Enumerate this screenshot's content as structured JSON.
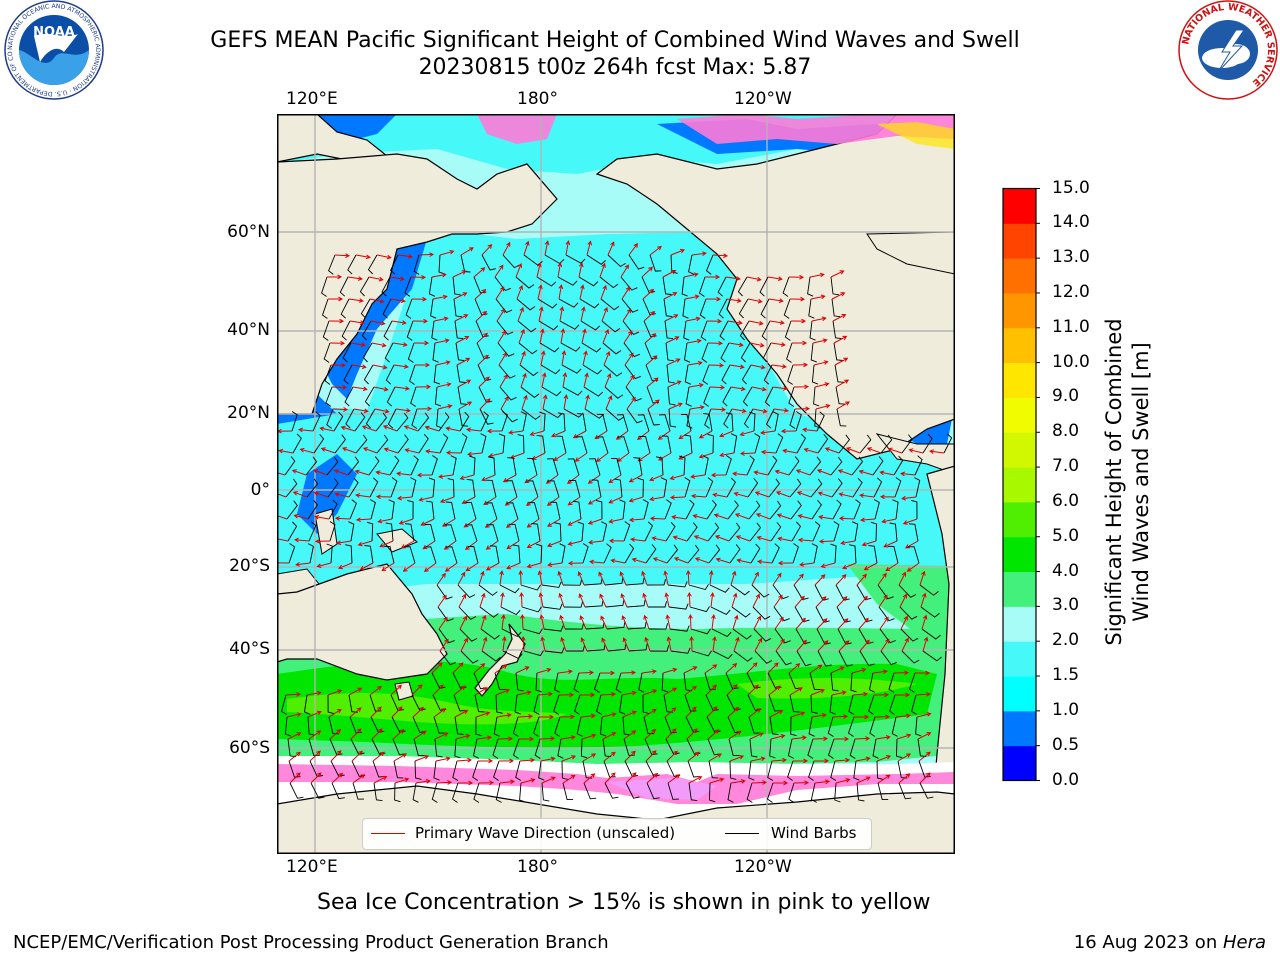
{
  "header": {
    "title_line1": "GEFS MEAN Pacific Significant Height of Combined Wind Waves and Swell",
    "title_line2": "20230815 t00z 264h fcst   Max: 5.87"
  },
  "logos": {
    "noaa": {
      "text": "NOAA",
      "ring_text": "NATIONAL OCEANIC AND ATMOSPHERIC ADMINISTRATION · U.S. DEPARTMENT OF COMMERCE"
    },
    "nws": {
      "ring_text": "NATIONAL WEATHER SERVICE"
    }
  },
  "map": {
    "lon_labels_top": [
      "120°E",
      "180°",
      "120°W"
    ],
    "lon_labels_bottom": [
      "120°E",
      "180°",
      "120°W"
    ],
    "lat_labels": [
      "60°N",
      "40°N",
      "20°N",
      "0°",
      "20°S",
      "40°S",
      "60°S"
    ],
    "colors": {
      "land": "#efecdc",
      "ice": "#ffffff",
      "ocean_calm": "#a8fcf8",
      "ocean_mid": "#46f8f8"
    }
  },
  "colorbar": {
    "ticks": [
      "15.0",
      "14.0",
      "13.0",
      "12.0",
      "11.0",
      "10.0",
      "9.0",
      "8.0",
      "7.0",
      "6.0",
      "5.0",
      "4.0",
      "3.0",
      "2.0",
      "1.5",
      "1.0",
      "0.5",
      "0.0"
    ],
    "colors": [
      "#0000ff",
      "#0078ff",
      "#00ffff",
      "#46f8f8",
      "#a8fcf8",
      "#44f07c",
      "#00e600",
      "#50ee00",
      "#a8f800",
      "#d2f800",
      "#f2fc00",
      "#ffe600",
      "#ffc000",
      "#ff9600",
      "#ff7000",
      "#ff4400",
      "#ff0000"
    ],
    "label_line1": "Significant Height of Combined",
    "label_line2": "Wind Waves and Swell [m]"
  },
  "legend": {
    "wave_label": "Primary Wave Direction (unscaled)",
    "wind_label": "Wind Barbs",
    "wave_color": "#e00000",
    "wind_color": "#000000"
  },
  "footnote": "Sea Ice Concentration > 15% is shown in pink to yellow",
  "footer": {
    "left": "NCEP/EMC/Verification Post Processing Product Generation Branch",
    "right_prefix": "16 Aug 2023 on ",
    "right_host": "Hera"
  }
}
